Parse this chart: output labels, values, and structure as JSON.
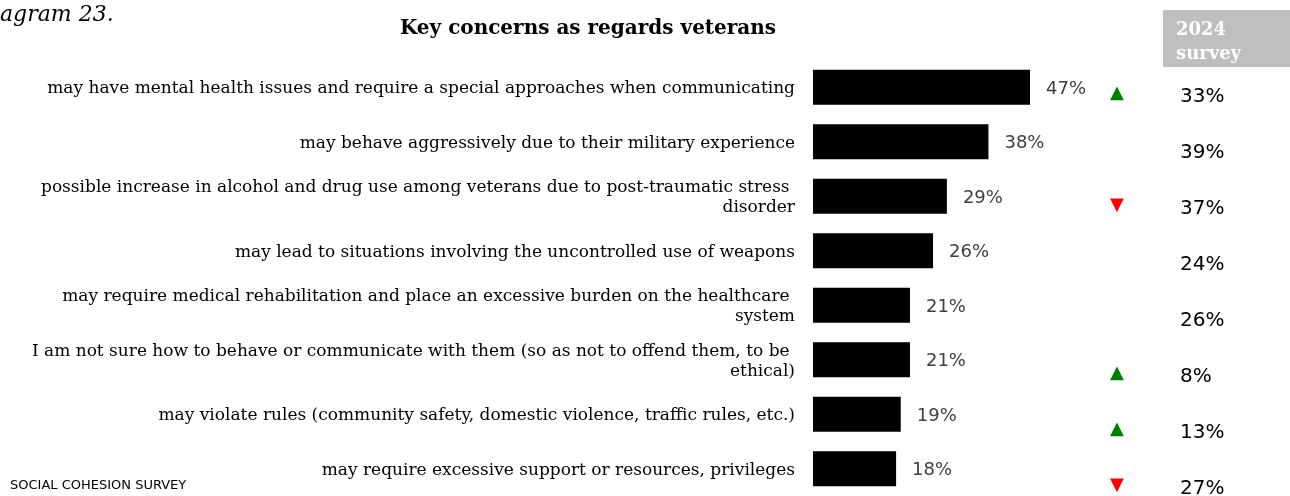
{
  "chart_data": [
    {
      "type": "bar",
      "orientation": "horizontal",
      "title": "Key concerns as regards veterans",
      "annotations": [
        "agram 23.",
        "SOCIAL COHESION SURVEY"
      ],
      "categories": [
        "may have mental health issues and require a special approaches when communicating",
        "may behave aggressively due to their military experience",
        "possible increase in alcohol and drug use among veterans due to post-traumatic stress disorder",
        "may lead to situations involving the uncontrolled use of weapons",
        "may require medical rehabilitation and place an excessive burden on the healthcare system",
        "I am not sure how to behave or communicate with them (so as not to offend them, to be ethical)",
        "may violate rules (community safety, domestic violence, traffic rules, etc.)",
        "may require excessive support or resources, privileges"
      ],
      "values": [
        47,
        38,
        29,
        26,
        21,
        21,
        19,
        18
      ],
      "value_labels": [
        "47%",
        "38%",
        "29%",
        "26%",
        "21%",
        "21%",
        "19%",
        "18%"
      ],
      "color": "#000000"
    },
    {
      "type": "other",
      "title": "2024 survey",
      "categories": [
        null,
        null,
        null,
        null,
        null,
        null,
        null,
        null
      ],
      "values": [
        33,
        39,
        37,
        24,
        26,
        8,
        13,
        27
      ],
      "value_labels": [
        "33%",
        "39%",
        "37%",
        "24%",
        "26%",
        "8%",
        "13%",
        "27%"
      ],
      "cell_labels": [
        "▲",
        null,
        "▼",
        null,
        null,
        "▲",
        "▲",
        "▼"
      ],
      "colors": [
        "#008000",
        null,
        "#ff0000",
        null,
        null,
        "#008000",
        "#008000",
        "#ff0000"
      ]
    }
  ]
}
